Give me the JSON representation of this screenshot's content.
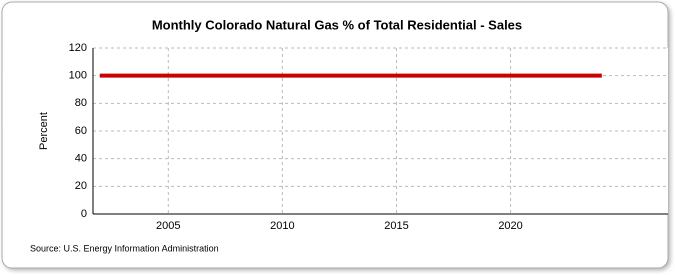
{
  "chart_data": {
    "type": "line",
    "title": "Monthly Colorado Natural Gas % of Total Residential - Sales",
    "y_label": "Percent",
    "source": "Source: U.S. Energy Information Administration",
    "x": [
      2002,
      2003,
      2004,
      2005,
      2006,
      2007,
      2008,
      2009,
      2010,
      2011,
      2012,
      2013,
      2014,
      2015,
      2016,
      2017,
      2018,
      2019,
      2020,
      2021,
      2022,
      2023,
      2024
    ],
    "series": [
      {
        "name": "Percent",
        "color": "#cc0000",
        "values": [
          100,
          100,
          100,
          100,
          100,
          100,
          100,
          100,
          100,
          100,
          100,
          100,
          100,
          100,
          100,
          100,
          100,
          100,
          100,
          100,
          100,
          100,
          100
        ]
      }
    ],
    "xlim": [
      2001.7,
      2026.9
    ],
    "xticks": [
      2005,
      2010,
      2015,
      2020
    ],
    "ylim": [
      0,
      120
    ],
    "yticks": [
      0,
      20,
      40,
      60,
      80,
      100,
      120
    ],
    "grid": true
  }
}
